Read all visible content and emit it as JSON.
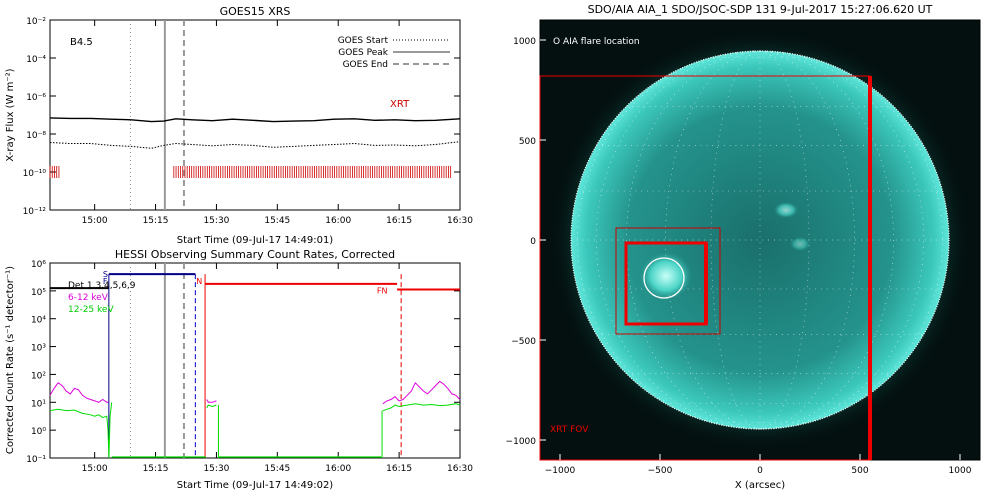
{
  "chart_data": [
    {
      "type": "line",
      "title": "GOES15 XRS",
      "goes_class": "B4.5",
      "ylabel": "X-ray Flux (W m⁻²)",
      "xlabel": "Start Time (09-Jul-17 14:49:01)",
      "ylog": true,
      "ylim_exp": [
        -12,
        -2
      ],
      "ytick_exponents": [
        -12,
        -10,
        -8,
        -6,
        -4,
        -2
      ],
      "ytick_labels": [
        "10⁻¹²",
        "10⁻¹⁰",
        "10⁻⁸",
        "10⁻⁶",
        "10⁻⁴",
        "10⁻²"
      ],
      "xlim_min": [
        0,
        101
      ],
      "xtick_minutes": [
        11,
        26,
        41,
        56,
        71,
        86,
        101
      ],
      "xtick_labels": [
        "15:00",
        "15:15",
        "15:30",
        "15:45",
        "16:00",
        "16:15",
        "16:30"
      ],
      "legend": [
        {
          "name": "GOES Start",
          "style": "dotted"
        },
        {
          "name": "GOES Peak",
          "style": "solid"
        },
        {
          "name": "GOES End",
          "style": "dashed"
        }
      ],
      "event_lines_min": {
        "start": 19.8,
        "peak": 28.3,
        "end": 33.0
      },
      "series": [
        {
          "name": "long",
          "color": "#000000",
          "x_min": [
            0,
            5,
            10,
            15,
            20,
            25,
            28,
            31,
            35,
            40,
            45,
            50,
            55,
            60,
            65,
            70,
            75,
            80,
            85,
            90,
            95,
            101
          ],
          "log10_flux": [
            -7.15,
            -7.18,
            -7.18,
            -7.22,
            -7.25,
            -7.35,
            -7.32,
            -7.2,
            -7.25,
            -7.3,
            -7.22,
            -7.28,
            -7.35,
            -7.32,
            -7.3,
            -7.22,
            -7.2,
            -7.28,
            -7.25,
            -7.3,
            -7.28,
            -7.2
          ]
        },
        {
          "name": "short",
          "color": "#000000",
          "style": "dotted",
          "x_min": [
            0,
            5,
            10,
            15,
            20,
            25,
            28,
            31,
            35,
            40,
            45,
            50,
            55,
            60,
            65,
            70,
            75,
            80,
            85,
            90,
            95,
            101
          ],
          "log10_flux": [
            -8.45,
            -8.5,
            -8.5,
            -8.6,
            -8.65,
            -8.75,
            -8.6,
            -8.5,
            -8.55,
            -8.62,
            -8.55,
            -8.6,
            -8.7,
            -8.65,
            -8.6,
            -8.55,
            -8.5,
            -8.6,
            -8.58,
            -8.62,
            -8.55,
            -8.4
          ]
        }
      ],
      "xrt": {
        "label": "XRT",
        "color": "#cc0000",
        "log10_level": -10,
        "intervals_min": [
          [
            0,
            2.5
          ],
          [
            30.5,
            99
          ]
        ]
      }
    },
    {
      "type": "line",
      "title": "HESSI Observing Summary Count Rates, Corrected",
      "ylabel": "Corrected Count Rate (s⁻¹ detector⁻¹)",
      "xlabel": "Start Time (09-Jul-17 14:49:02)",
      "ylog": true,
      "ylim_exp": [
        -1,
        6
      ],
      "ytick_exponents": [
        -1,
        0,
        1,
        2,
        3,
        4,
        5,
        6
      ],
      "ytick_labels": [
        "10⁻¹",
        "10⁰",
        "10¹",
        "10²",
        "10³",
        "10⁴",
        "10⁵",
        "10⁶"
      ],
      "xlim_min": [
        0,
        101
      ],
      "xtick_minutes": [
        11,
        26,
        41,
        56,
        71,
        86,
        101
      ],
      "xtick_labels": [
        "15:00",
        "15:15",
        "15:30",
        "15:45",
        "16:00",
        "16:15",
        "16:30"
      ],
      "legend": [
        {
          "name": "Det 1,3,4,5,6,9",
          "color": "#000000"
        },
        {
          "name": "6-12 keV",
          "color": "#dd00dd"
        },
        {
          "name": "12-25 keV",
          "color": "#00dd00"
        }
      ],
      "flag_labels": [
        {
          "text": "S",
          "x_min": 14.5
        },
        {
          "text": "F",
          "x_min": 14.5
        },
        {
          "text": "N",
          "x_min": 37.5
        },
        {
          "text": "FN",
          "x_min": 82
        }
      ],
      "event_lines_min": {
        "start": 19.8,
        "peak": 28.3,
        "end": 33.0
      },
      "segments": [
        {
          "name": "attenuator-top",
          "color": "#000000",
          "x_min": [
            0,
            14.5
          ],
          "log10": 5.1
        },
        {
          "name": "state-navy",
          "color": "#000088",
          "x_min": [
            14.5,
            35.8
          ],
          "log10": 5.6
        },
        {
          "name": "state-red",
          "color": "#ee0000",
          "x_min": [
            38.2,
            85.5
          ],
          "log10": 5.25
        },
        {
          "name": "state-red-low",
          "color": "#ee0000",
          "x_min": [
            85.5,
            101
          ],
          "log10": 5.05
        }
      ],
      "vlines_min": [
        {
          "x": 14.5,
          "color": "#000088",
          "style": "solid"
        },
        {
          "x": 35.8,
          "color": "#0000cc",
          "style": "dashed"
        },
        {
          "x": 38.2,
          "color": "#ee0000",
          "style": "solid"
        },
        {
          "x": 86.5,
          "color": "#ee0000",
          "style": "dashed"
        }
      ],
      "series": [
        {
          "name": "6-12 keV",
          "color": "#dd00dd",
          "x_min": [
            0,
            1,
            2,
            3,
            4,
            5,
            6,
            7,
            8,
            9,
            10,
            11,
            12,
            13,
            14,
            14.4,
            38.6,
            39,
            40,
            41,
            82,
            83,
            84,
            85,
            86,
            87,
            88,
            89,
            90,
            91,
            92,
            93,
            94,
            95,
            96,
            97,
            98,
            99,
            100,
            101
          ],
          "log10": [
            1.25,
            1.5,
            1.7,
            1.6,
            1.4,
            1.3,
            1.5,
            1.45,
            1.25,
            1.15,
            1.1,
            1.05,
            1.0,
            1.1,
            1.0,
            1.0,
            1.1,
            1.0,
            1.0,
            1.05,
            0.95,
            1.05,
            1.1,
            1.2,
            1.05,
            1.1,
            1.25,
            1.4,
            1.7,
            1.55,
            1.4,
            1.3,
            1.45,
            1.6,
            1.75,
            1.65,
            1.5,
            1.3,
            1.25,
            1.1
          ]
        },
        {
          "name": "12-25 keV",
          "color": "#00dd00",
          "x_min": [
            0,
            2,
            4,
            6,
            8,
            10,
            11,
            12,
            13,
            14,
            14.3,
            14.5,
            14.8,
            15.2,
            38.6,
            39,
            40,
            41,
            82,
            83,
            84,
            85,
            86,
            88,
            90,
            92,
            94,
            96,
            98,
            100,
            101
          ],
          "log10": [
            0.7,
            0.75,
            0.7,
            0.72,
            0.6,
            0.55,
            0.5,
            0.55,
            0.45,
            0.5,
            0.0,
            -1.0,
            0.5,
            1.0,
            0.8,
            0.9,
            0.85,
            0.9,
            0.7,
            0.75,
            0.8,
            0.9,
            0.85,
            0.9,
            0.95,
            0.9,
            0.92,
            0.88,
            0.9,
            0.95,
            0.9
          ]
        }
      ],
      "gaps_min": [
        [
          14.5,
          38.2
        ],
        [
          82,
          82
        ]
      ]
    },
    {
      "type": "image",
      "title": "SDO/AIA AIA_1 SDO/JSOC-SDP 131  9-Jul-2017 15:27:06.620 UT",
      "xlabel": "X (arcsec)",
      "ylabel": "",
      "xlim": [
        -1100,
        1100
      ],
      "ylim": [
        -1100,
        1100
      ],
      "xticks": [
        -1000,
        -500,
        0,
        500,
        1000
      ],
      "xtick_labels": [
        "−1000",
        "−500",
        "0",
        "500",
        "1000"
      ],
      "yticks": [
        -1000,
        -500,
        0,
        500,
        1000
      ],
      "ytick_labels": [
        "−1000",
        "−500",
        "0",
        "500",
        "1000"
      ],
      "sun_radius_arcsec": 945,
      "flare_circle": {
        "cx": -480,
        "cy": -190,
        "r": 100
      },
      "fov_boxes": [
        {
          "name": "xrt-fov",
          "x": [
            -1100,
            550
          ],
          "y": [
            -1100,
            820
          ],
          "color": "#ee0000"
        },
        {
          "name": "hessi-outer",
          "x": [
            -720,
            -200
          ],
          "y": [
            -470,
            60
          ],
          "color": "#cc0000"
        },
        {
          "name": "hessi-inner",
          "x": [
            -670,
            -270
          ],
          "y": [
            -420,
            -15
          ],
          "color": "#ee0000"
        }
      ],
      "legend_flare": "O AIA flare location",
      "label_xrt": "XRT FOV",
      "colors": {
        "disk_center": "#1d7b76",
        "disk_edge": "#4fd9cc",
        "space": "#03100f",
        "box": "#ee0000"
      }
    }
  ]
}
